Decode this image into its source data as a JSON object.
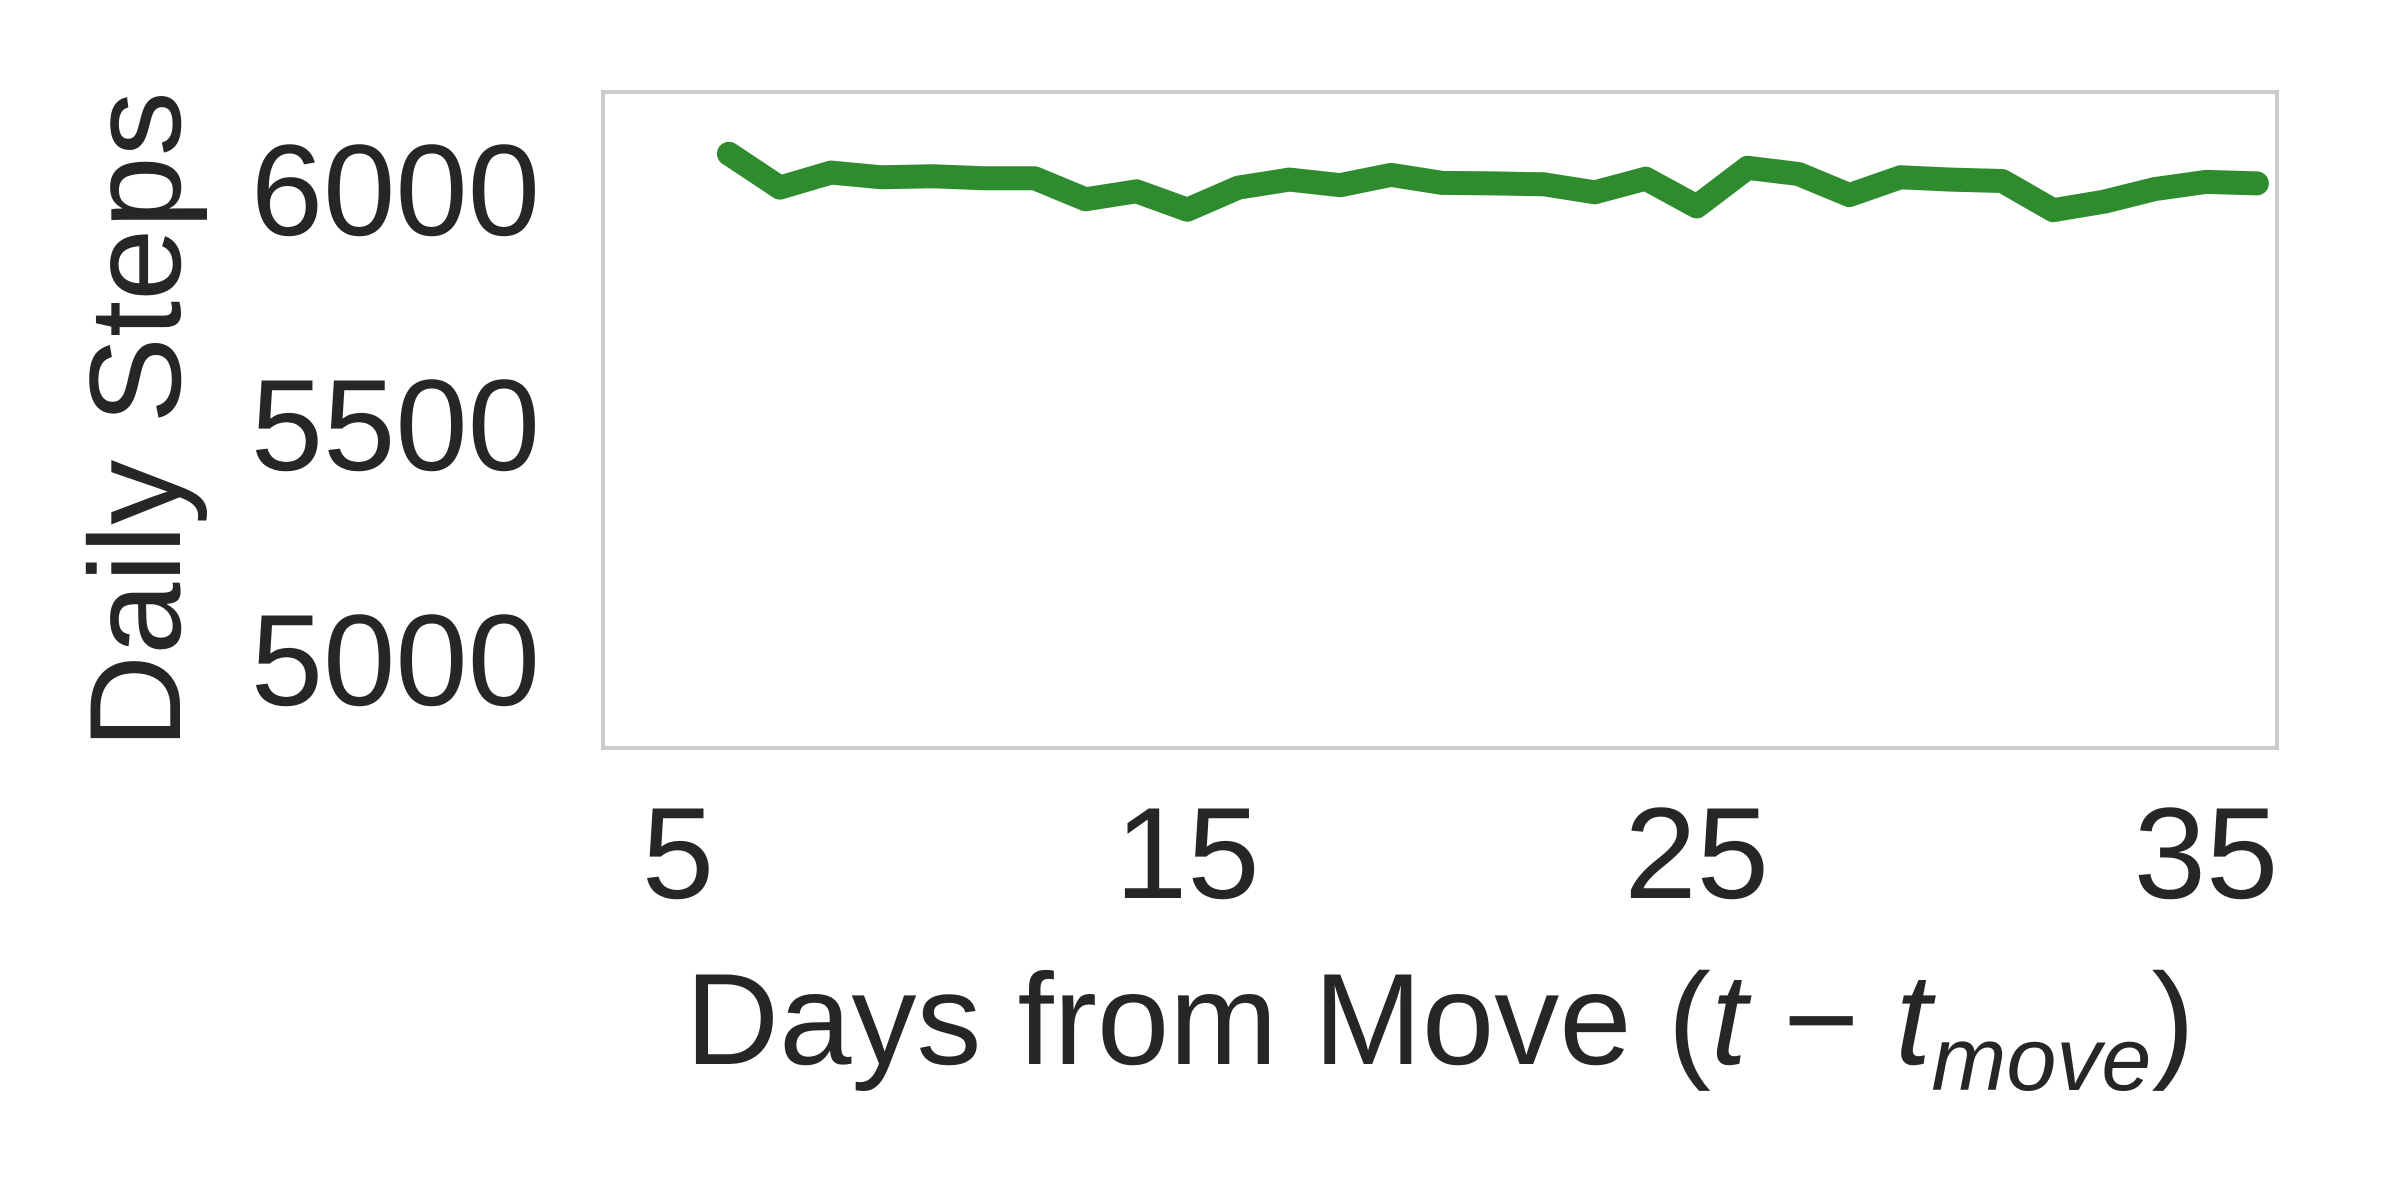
{
  "chart_data": {
    "type": "line",
    "title": "",
    "xlabel_prefix": "Days from Move (",
    "xlabel_t": "t",
    "xlabel_minus": " − ",
    "xlabel_t2": "t",
    "xlabel_sub": "move",
    "xlabel_suffix": ")",
    "ylabel": "Daily Steps",
    "xlim": [
      5,
      35
    ],
    "ylim": [
      4880,
      6215
    ],
    "xticks": [
      5,
      15,
      25,
      35
    ],
    "xtick_labels": [
      "5",
      "15",
      "25",
      "35"
    ],
    "yticks": [
      5000,
      5500,
      6000
    ],
    "ytick_labels": [
      "5000",
      "5500",
      "6000"
    ],
    "grid": false,
    "series": [
      {
        "color": "#2e8b2e",
        "x": [
          6,
          7,
          8,
          9,
          10,
          11,
          12,
          13,
          14,
          15,
          16,
          17,
          18,
          19,
          20,
          21,
          22,
          23,
          24,
          25,
          26,
          27,
          28,
          29,
          30,
          31,
          32,
          33,
          34,
          35,
          36
        ],
        "y": [
          6075,
          6003,
          6035,
          6025,
          6027,
          6023,
          6023,
          5978,
          5995,
          5956,
          6003,
          6020,
          6008,
          6030,
          6013,
          6012,
          6010,
          5993,
          6022,
          5963,
          6045,
          6032,
          5987,
          6025,
          6020,
          6017,
          5955,
          5973,
          6000,
          6015,
          6012
        ]
      }
    ]
  }
}
